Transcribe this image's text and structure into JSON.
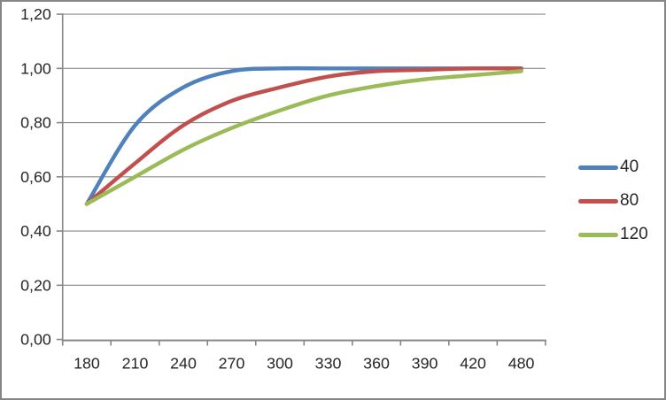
{
  "chart_data": {
    "type": "line",
    "categories": [
      "180",
      "210",
      "240",
      "270",
      "300",
      "330",
      "360",
      "390",
      "420",
      "480"
    ],
    "series": [
      {
        "name": "40",
        "color": "#4F81BD",
        "values": [
          0.5,
          0.79,
          0.93,
          0.99,
          1.0,
          1.0,
          1.0,
          1.0,
          1.0,
          1.0
        ]
      },
      {
        "name": "80",
        "color": "#C0504D",
        "values": [
          0.5,
          0.65,
          0.79,
          0.88,
          0.93,
          0.97,
          0.99,
          0.995,
          1.0,
          1.0
        ]
      },
      {
        "name": "120",
        "color": "#9BBB59",
        "values": [
          0.5,
          0.6,
          0.7,
          0.78,
          0.845,
          0.9,
          0.935,
          0.96,
          0.975,
          0.99
        ]
      }
    ],
    "title": "",
    "xlabel": "",
    "ylabel": "",
    "ylim": [
      0,
      1.2
    ],
    "ytick_step": 0.2,
    "ytick_labels": [
      "0,00",
      "0,20",
      "0,40",
      "0,60",
      "0,80",
      "1,00",
      "1,20"
    ],
    "grid": true,
    "line_style": "smooth",
    "legend_position": "right"
  },
  "colors": {
    "gridline": "#878787",
    "axis": "#868686",
    "tick_text": "#262626",
    "background": "#ffffff",
    "frame_border": "#868686"
  }
}
